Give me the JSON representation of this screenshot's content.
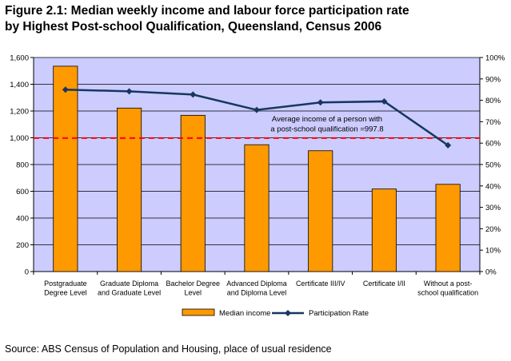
{
  "figure": {
    "title_line1": "Figure 2.1:  Median weekly income and labour force participation rate",
    "title_line2": "by Highest Post-school Qualification, Queensland, Census 2006",
    "source": "Source: ABS Census of Population and Housing, place of usual residence"
  },
  "chart_data": {
    "type": "bar",
    "categories": [
      [
        "Postgraduate",
        "Degree Level"
      ],
      [
        "Graduate Diploma",
        "and Graduate  Level"
      ],
      [
        "Bachelor Degree",
        "Level"
      ],
      [
        "Advanced Diploma",
        "and Diploma  Level"
      ],
      [
        "Certificate III/IV"
      ],
      [
        "Certificate I/II"
      ],
      [
        "Without a post-",
        "school qualification"
      ]
    ],
    "series": [
      {
        "name": "Median income",
        "type": "bar",
        "axis": "left",
        "color": "#FF9900",
        "values": [
          1535,
          1222,
          1168,
          948,
          903,
          617,
          652
        ]
      },
      {
        "name": "Participation Rate",
        "type": "line",
        "axis": "right",
        "color": "#17375E",
        "values": [
          85,
          84.2,
          82.7,
          75.5,
          79,
          79.5,
          59
        ]
      }
    ],
    "reference_line": {
      "value": 997.8,
      "color": "#FF0000",
      "style": "dashed",
      "label": [
        "Average income of a person with",
        "a post-school qualification =997.8"
      ]
    },
    "y_left": {
      "min": 0,
      "max": 1600,
      "step": 200,
      "ticks": [
        "0",
        "200",
        "400",
        "600",
        "800",
        "1,000",
        "1,200",
        "1,400",
        "1,600"
      ]
    },
    "y_right": {
      "min": 0,
      "max": 100,
      "step": 10,
      "ticks": [
        "0%",
        "10%",
        "20%",
        "30%",
        "40%",
        "50%",
        "60%",
        "70%",
        "80%",
        "90%",
        "100%"
      ]
    },
    "plot_background": "#CCCCFF",
    "grid": true,
    "legend_position": "bottom"
  }
}
